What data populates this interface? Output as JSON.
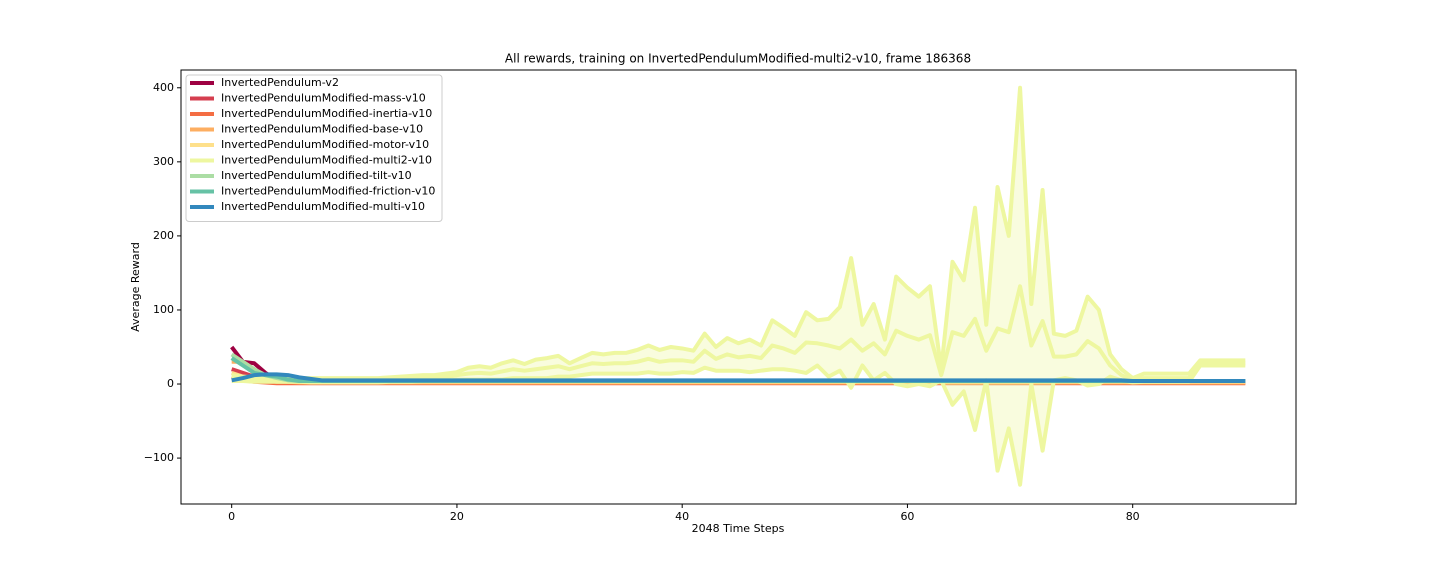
{
  "chart_data": {
    "type": "line",
    "title": "All rewards, training on InvertedPendulumModified-multi2-v10, frame 186368",
    "xlabel": "2048 Time Steps",
    "ylabel": "Average Reward",
    "x": [
      0,
      1,
      2,
      3,
      4,
      5,
      6,
      7,
      8,
      9,
      10,
      11,
      12,
      13,
      14,
      15,
      16,
      17,
      18,
      19,
      20,
      21,
      22,
      23,
      24,
      25,
      26,
      27,
      28,
      29,
      30,
      31,
      32,
      33,
      34,
      35,
      36,
      37,
      38,
      39,
      40,
      41,
      42,
      43,
      44,
      45,
      46,
      47,
      48,
      49,
      50,
      51,
      52,
      53,
      54,
      55,
      56,
      57,
      58,
      59,
      60,
      61,
      62,
      63,
      64,
      65,
      66,
      67,
      68,
      69,
      70,
      71,
      72,
      73,
      74,
      75,
      76,
      77,
      78,
      79,
      80,
      81,
      82,
      83,
      84,
      85,
      86,
      87,
      88,
      89,
      90
    ],
    "xlim": [
      -4.5,
      94.5
    ],
    "xticks": [
      0,
      20,
      40,
      60,
      80
    ],
    "ylim": [
      -162,
      424
    ],
    "yticks": [
      {
        "value": -100,
        "label": "−100"
      },
      0,
      100,
      200,
      300,
      400
    ],
    "legend": "upper left",
    "series": [
      {
        "name": "InvertedPendulum-v2",
        "color": "#9e0142",
        "values": [
          50,
          30,
          28,
          15,
          6,
          4,
          3,
          2,
          2,
          2,
          2,
          2,
          2,
          2,
          2,
          2,
          2,
          2,
          2,
          2,
          2,
          2,
          2,
          2,
          2,
          2,
          2,
          2,
          2,
          2,
          2,
          2,
          2,
          2,
          2,
          2,
          2,
          2,
          2,
          2,
          2,
          2,
          2,
          2,
          2,
          2,
          2,
          2,
          2,
          2,
          2,
          2,
          2,
          2,
          2,
          2,
          2,
          2,
          2,
          2,
          2,
          2,
          2,
          2,
          2,
          2,
          2,
          2,
          2,
          2,
          2,
          2,
          2,
          2,
          2,
          2,
          2,
          2,
          2,
          2,
          2,
          2,
          2,
          2,
          2,
          2,
          2,
          2,
          2,
          2,
          2
        ]
      },
      {
        "name": "InvertedPendulumModified-mass-v10",
        "color": "#d53e4f",
        "values": [
          20,
          15,
          10,
          5,
          3,
          2,
          2,
          2,
          2,
          2,
          2,
          2,
          2,
          2,
          2,
          2,
          2,
          2,
          2,
          2,
          2,
          2,
          2,
          2,
          2,
          2,
          2,
          2,
          2,
          2,
          2,
          2,
          2,
          2,
          2,
          2,
          2,
          2,
          2,
          2,
          2,
          2,
          2,
          2,
          2,
          2,
          2,
          2,
          2,
          2,
          2,
          2,
          2,
          2,
          2,
          2,
          2,
          2,
          2,
          2,
          2,
          2,
          2,
          2,
          2,
          2,
          2,
          2,
          2,
          2,
          2,
          2,
          2,
          2,
          2,
          2,
          2,
          2,
          2,
          2,
          2,
          2,
          2,
          2,
          2,
          2,
          2,
          2,
          2,
          2,
          2
        ]
      },
      {
        "name": "InvertedPendulumModified-inertia-v10",
        "color": "#f46d43",
        "values": [
          10,
          5,
          3,
          2,
          1,
          1,
          1,
          1,
          1,
          1,
          1,
          1,
          1,
          1,
          1,
          1,
          1,
          1,
          1,
          1,
          1,
          1,
          1,
          1,
          1,
          1,
          1,
          1,
          1,
          1,
          1,
          1,
          1,
          1,
          1,
          1,
          1,
          1,
          1,
          1,
          1,
          1,
          1,
          1,
          1,
          1,
          1,
          1,
          1,
          1,
          1,
          1,
          1,
          1,
          1,
          1,
          1,
          1,
          1,
          1,
          1,
          1,
          1,
          1,
          1,
          1,
          1,
          1,
          1,
          1,
          1,
          1,
          1,
          1,
          1,
          1,
          1,
          1,
          1,
          1,
          1,
          1,
          1,
          1,
          1,
          1,
          1,
          1,
          1,
          1,
          1
        ]
      },
      {
        "name": "InvertedPendulumModified-base-v10",
        "color": "#fdae61",
        "values": [
          30,
          30,
          20,
          8,
          4,
          3,
          2,
          2,
          2,
          2,
          2,
          2,
          2,
          2,
          2,
          2,
          2,
          2,
          2,
          2,
          2,
          2,
          2,
          2,
          2,
          2,
          2,
          2,
          2,
          2,
          2,
          2,
          2,
          2,
          2,
          2,
          2,
          2,
          2,
          2,
          2,
          2,
          2,
          2,
          2,
          2,
          2,
          2,
          2,
          2,
          2,
          2,
          2,
          2,
          2,
          2,
          2,
          2,
          2,
          2,
          2,
          2,
          2,
          2,
          2,
          2,
          2,
          2,
          2,
          2,
          2,
          2,
          2,
          2,
          2,
          2,
          2,
          2,
          2,
          2,
          2,
          2,
          2,
          2,
          2,
          2,
          2,
          2,
          2,
          2,
          2
        ]
      },
      {
        "name": "InvertedPendulumModified-motor-v10",
        "color": "#fee08b",
        "values": [
          15,
          10,
          8,
          5,
          3,
          3,
          3,
          3,
          3,
          3,
          3,
          3,
          3,
          3,
          3,
          3,
          3,
          3,
          3,
          3,
          3,
          3,
          3,
          3,
          3,
          3,
          3,
          3,
          3,
          3,
          3,
          3,
          3,
          3,
          3,
          3,
          3,
          3,
          3,
          3,
          3,
          3,
          3,
          3,
          3,
          3,
          3,
          3,
          3,
          3,
          3,
          3,
          3,
          3,
          3,
          3,
          3,
          3,
          3,
          3,
          3,
          3,
          3,
          3,
          3,
          3,
          3,
          3,
          3,
          3,
          3,
          3,
          3,
          3,
          3,
          3,
          3,
          3,
          3,
          3,
          3,
          3,
          3,
          3,
          3,
          3,
          3,
          3,
          3,
          3,
          3
        ]
      },
      {
        "name": "InvertedPendulumModified-multi2-v10",
        "color": "#eef7a0",
        "values": [
          8,
          7,
          6,
          6,
          6,
          6,
          6,
          5,
          5,
          5,
          5,
          5,
          5,
          5,
          6,
          6,
          7,
          8,
          8,
          9,
          12,
          14,
          15,
          14,
          17,
          20,
          18,
          20,
          22,
          24,
          20,
          24,
          28,
          27,
          28,
          28,
          30,
          34,
          30,
          32,
          32,
          30,
          45,
          34,
          40,
          36,
          38,
          35,
          52,
          48,
          42,
          56,
          55,
          52,
          48,
          60,
          45,
          55,
          40,
          72,
          65,
          60,
          66,
          12,
          70,
          65,
          88,
          45,
          75,
          70,
          132,
          52,
          85,
          37,
          37,
          40,
          58,
          48,
          25,
          12,
          5,
          8,
          8,
          8,
          8,
          8,
          28,
          28,
          28,
          28,
          28
        ],
        "upper": [
          12,
          10,
          9,
          9,
          9,
          8,
          8,
          8,
          8,
          8,
          8,
          8,
          8,
          8,
          9,
          10,
          11,
          12,
          12,
          14,
          16,
          22,
          24,
          22,
          28,
          32,
          27,
          33,
          35,
          38,
          28,
          35,
          42,
          40,
          42,
          42,
          46,
          52,
          46,
          50,
          48,
          45,
          68,
          50,
          62,
          55,
          60,
          52,
          86,
          76,
          65,
          97,
          86,
          88,
          104,
          170,
          80,
          108,
          60,
          145,
          130,
          118,
          132,
          20,
          165,
          140,
          238,
          80,
          266,
          200,
          400,
          108,
          262,
          68,
          65,
          72,
          118,
          100,
          40,
          20,
          8,
          14,
          14,
          14,
          14,
          14,
          32,
          32,
          32,
          32,
          32
        ],
        "lower": [
          4,
          4,
          3,
          3,
          3,
          3,
          3,
          2,
          2,
          2,
          2,
          2,
          2,
          2,
          3,
          3,
          3,
          4,
          4,
          4,
          6,
          6,
          6,
          6,
          6,
          8,
          8,
          8,
          8,
          10,
          10,
          12,
          14,
          14,
          14,
          14,
          14,
          16,
          14,
          14,
          16,
          15,
          22,
          18,
          18,
          18,
          16,
          18,
          20,
          20,
          18,
          15,
          25,
          10,
          18,
          -5,
          25,
          5,
          15,
          0,
          -3,
          0,
          -3,
          5,
          -28,
          -10,
          -62,
          5,
          -117,
          -60,
          -136,
          0,
          -90,
          5,
          8,
          5,
          -2,
          0,
          10,
          5,
          2,
          3,
          3,
          3,
          3,
          3,
          25,
          25,
          25,
          25,
          25
        ]
      },
      {
        "name": "InvertedPendulumModified-tilt-v10",
        "color": "#abdda4",
        "values": [
          40,
          30,
          20,
          12,
          8,
          5,
          4,
          4,
          4,
          4,
          4,
          4,
          4,
          4,
          4,
          4,
          4,
          4,
          4,
          4,
          4,
          4,
          4,
          4,
          4,
          4,
          4,
          4,
          4,
          4,
          4,
          4,
          4,
          4,
          4,
          4,
          4,
          4,
          4,
          4,
          4,
          4,
          4,
          4,
          4,
          4,
          4,
          4,
          4,
          4,
          4,
          4,
          4,
          4,
          4,
          4,
          4,
          4,
          4,
          4,
          4,
          4,
          4,
          4,
          4,
          4,
          4,
          4,
          4,
          4,
          4,
          4,
          4,
          4,
          4,
          4,
          4,
          4,
          4,
          4,
          4,
          4,
          4,
          4,
          4,
          4,
          4,
          4,
          4,
          4,
          4
        ]
      },
      {
        "name": "InvertedPendulumModified-friction-v10",
        "color": "#66c2a5",
        "values": [
          35,
          25,
          15,
          12,
          10,
          6,
          4,
          4,
          4,
          4,
          4,
          4,
          4,
          4,
          4,
          4,
          4,
          4,
          4,
          4,
          4,
          4,
          4,
          4,
          4,
          4,
          4,
          4,
          4,
          4,
          4,
          4,
          4,
          4,
          4,
          4,
          4,
          4,
          4,
          4,
          4,
          4,
          4,
          4,
          4,
          4,
          4,
          4,
          4,
          4,
          4,
          4,
          4,
          4,
          4,
          4,
          4,
          4,
          4,
          4,
          4,
          4,
          4,
          4,
          4,
          4,
          4,
          4,
          4,
          4,
          4,
          4,
          4,
          4,
          4,
          4,
          4,
          4,
          4,
          4,
          4,
          4,
          4,
          4,
          4,
          4,
          4,
          4,
          4,
          4,
          4
        ]
      },
      {
        "name": "InvertedPendulumModified-multi-v10",
        "color": "#3288bd",
        "values": [
          5,
          8,
          12,
          13,
          13,
          12,
          9,
          7,
          5,
          5,
          5,
          5,
          5,
          5,
          5,
          5,
          5,
          5,
          5,
          5,
          5,
          5,
          5,
          5,
          5,
          5,
          5,
          5,
          5,
          5,
          5,
          5,
          5,
          5,
          5,
          5,
          5,
          5,
          5,
          5,
          5,
          5,
          5,
          5,
          5,
          5,
          5,
          5,
          5,
          5,
          5,
          5,
          5,
          5,
          5,
          5,
          5,
          5,
          5,
          5,
          5,
          5,
          5,
          5,
          5,
          5,
          5,
          5,
          5,
          5,
          5,
          5,
          5,
          5,
          5,
          5,
          5,
          5,
          5,
          5,
          4,
          4,
          4,
          4,
          4,
          4,
          4,
          4,
          4,
          4,
          4
        ]
      }
    ]
  }
}
